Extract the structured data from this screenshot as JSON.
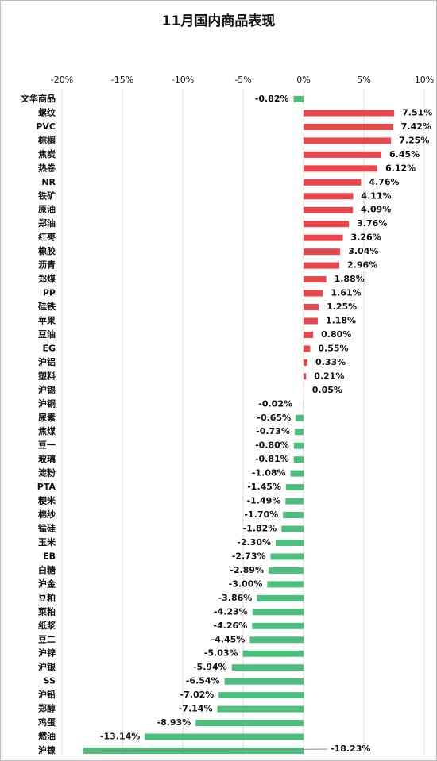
{
  "chart_data": {
    "type": "hbar",
    "title": "11月国内商品表现",
    "categories": [
      "文华商品",
      "螺纹",
      "PVC",
      "棕榈",
      "焦炭",
      "热卷",
      "NR",
      "铁矿",
      "原油",
      "郑油",
      "红枣",
      "橡胶",
      "沥青",
      "郑煤",
      "PP",
      "硅铁",
      "苹果",
      "豆油",
      "EG",
      "沪铝",
      "塑料",
      "沪锡",
      "沪铜",
      "尿素",
      "焦煤",
      "豆一",
      "玻璃",
      "淀粉",
      "PTA",
      "粳米",
      "棉纱",
      "锰硅",
      "玉米",
      "EB",
      "白糖",
      "沪金",
      "豆粕",
      "菜粕",
      "纸浆",
      "豆二",
      "沪锌",
      "沪银",
      "SS",
      "沪铅",
      "郑醇",
      "鸡蛋",
      "燃油",
      "沪镍"
    ],
    "values": [
      -0.82,
      7.51,
      7.42,
      7.25,
      6.45,
      6.12,
      4.76,
      4.11,
      4.09,
      3.76,
      3.26,
      3.04,
      2.96,
      1.88,
      1.61,
      1.25,
      1.18,
      0.8,
      0.55,
      0.33,
      0.21,
      0.05,
      -0.02,
      -0.65,
      -0.73,
      -0.8,
      -0.81,
      -1.08,
      -1.45,
      -1.49,
      -1.7,
      -1.82,
      -2.3,
      -2.73,
      -2.89,
      -3.0,
      -3.86,
      -4.23,
      -4.26,
      -4.45,
      -5.03,
      -5.94,
      -6.54,
      -7.02,
      -7.14,
      -8.93,
      -13.14,
      -18.23
    ],
    "value_labels": [
      "-0.82%",
      "7.51%",
      "7.42%",
      "7.25%",
      "6.45%",
      "6.12%",
      "4.76%",
      "4.11%",
      "4.09%",
      "3.76%",
      "3.26%",
      "3.04%",
      "2.96%",
      "1.88%",
      "1.61%",
      "1.25%",
      "1.18%",
      "0.80%",
      "0.55%",
      "0.33%",
      "0.21%",
      "0.05%",
      "-0.02%",
      "-0.65%",
      "-0.73%",
      "-0.80%",
      "-0.81%",
      "-1.08%",
      "-1.45%",
      "-1.49%",
      "-1.70%",
      "-1.82%",
      "-2.30%",
      "-2.73%",
      "-2.89%",
      "-3.00%",
      "-3.86%",
      "-4.23%",
      "-4.26%",
      "-4.45%",
      "-5.03%",
      "-5.94%",
      "-6.54%",
      "-7.02%",
      "-7.14%",
      "-8.93%",
      "-13.14%",
      "-18.23%"
    ],
    "positive_color": "#e8474c",
    "negative_color": "#4cbf7c",
    "xlim": [
      -20,
      10
    ],
    "xticks": [
      {
        "value": -20,
        "label": "-20%"
      },
      {
        "value": -15,
        "label": "-15%"
      },
      {
        "value": -10,
        "label": "-10%"
      },
      {
        "value": -5,
        "label": "-5%"
      },
      {
        "value": 0,
        "label": "0%"
      },
      {
        "value": 5,
        "label": "5%"
      },
      {
        "value": 10,
        "label": "10%"
      }
    ],
    "grid": true
  }
}
